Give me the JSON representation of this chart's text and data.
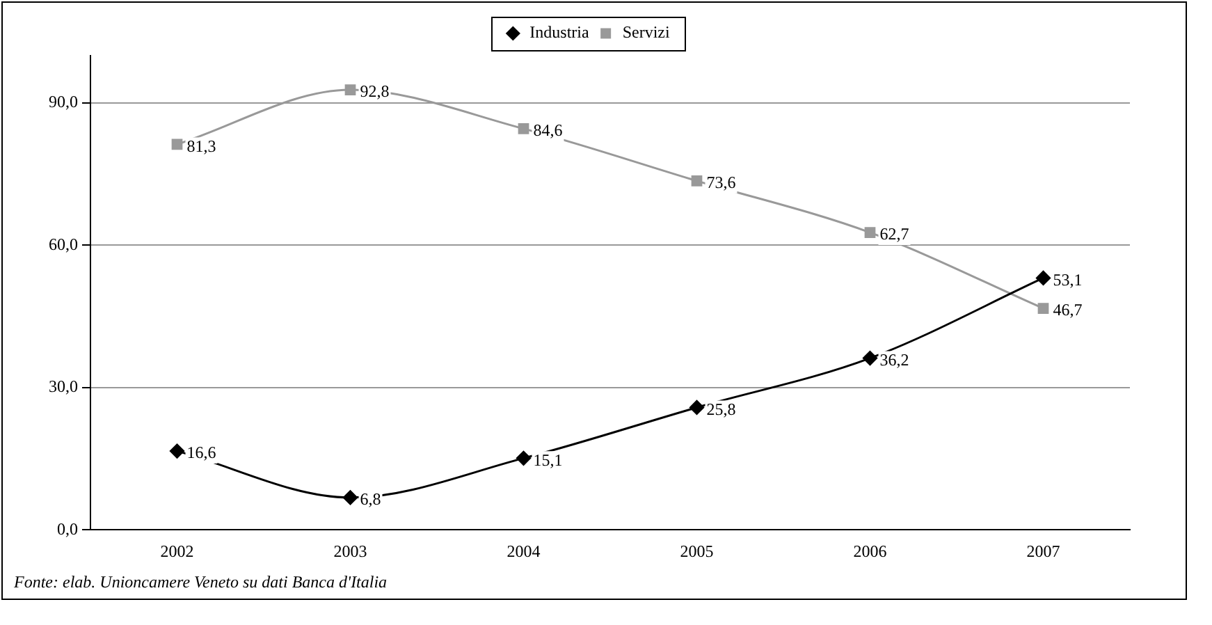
{
  "chart_data": {
    "type": "line",
    "categories": [
      "2002",
      "2003",
      "2004",
      "2005",
      "2006",
      "2007"
    ],
    "series": [
      {
        "name": "Industria",
        "color": "#000000",
        "marker": "diamond",
        "values": [
          16.6,
          6.8,
          15.1,
          25.8,
          36.2,
          53.1
        ],
        "value_labels": [
          "16,6",
          "6,8",
          "15,1",
          "25,8",
          "36,2",
          "53,1"
        ]
      },
      {
        "name": "Servizi",
        "color": "#999999",
        "marker": "square",
        "values": [
          81.3,
          92.8,
          84.6,
          73.6,
          62.7,
          46.7
        ],
        "value_labels": [
          "81,3",
          "92,8",
          "84,6",
          "73,6",
          "62,7",
          "46,7"
        ]
      }
    ],
    "ylim": [
      0,
      100
    ],
    "yticks": [
      {
        "value": 0,
        "label": "0,0"
      },
      {
        "value": 30,
        "label": "30,0"
      },
      {
        "value": 60,
        "label": "60,0"
      },
      {
        "value": 90,
        "label": "90,0"
      }
    ],
    "grid": "y",
    "legend": "top",
    "annotations": [
      "Fonte: elab. Unioncamere Veneto su dati Banca d'Italia"
    ]
  }
}
